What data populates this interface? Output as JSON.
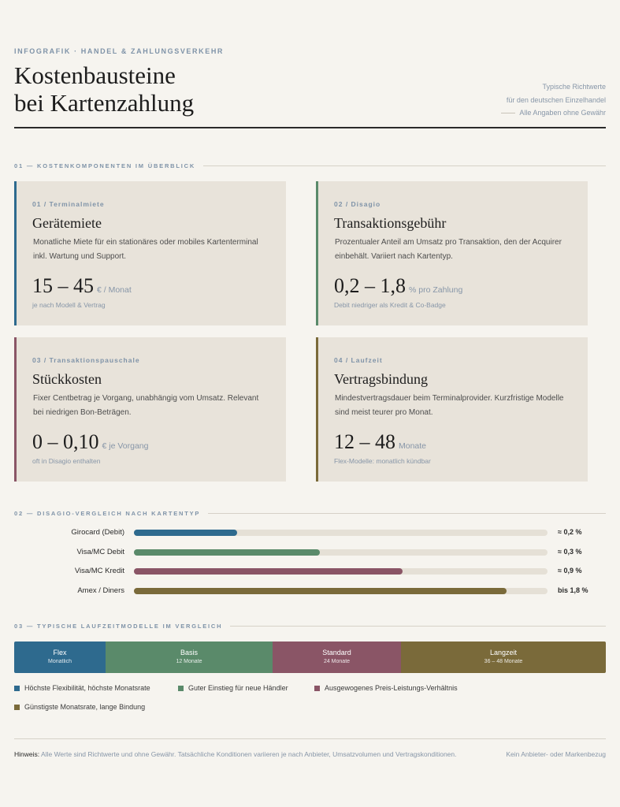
{
  "header": {
    "kicker": "INFOGRAFIK · HANDEL & ZAHLUNGSVERKEHR",
    "title": [
      "Kostenbausteine",
      "bei Kartenzahlung"
    ],
    "note": [
      "Typische Richtwerte",
      "für den deutschen Einzelhandel",
      "Alle Angaben ohne Gewähr"
    ]
  },
  "section1": {
    "label": "01 — KOSTENKOMPONENTEN IM ÜBERBLICK",
    "cards": [
      {
        "label": "01 / Terminalmiete",
        "title": "Gerätemiete",
        "text": "Monatliche Miete für ein stationäres oder mobiles Kartenterminal inkl. Wartung und Support.",
        "value": "15 – 45",
        "unit": "€ / Monat",
        "sub": "je nach Modell & Vertrag",
        "color": "#2e6a8e"
      },
      {
        "label": "02 / Disagio",
        "title": "Transaktionsgebühr",
        "text": "Prozentualer Anteil am Umsatz pro Transaktion, den der Acquirer einbehält. Variiert nach Kartentyp.",
        "value": "0,2 – 1,8",
        "unit": "% pro Zahlung",
        "sub": "Debit niedriger als Kredit & Co-Badge",
        "color": "#5a8a6a"
      },
      {
        "label": "03 / Transaktionspauschale",
        "title": "Stückkosten",
        "text": "Fixer Centbetrag je Vorgang, unabhängig vom Umsatz. Relevant bei niedrigen Bon-Beträgen.",
        "value": "0 – 0,10",
        "unit": "€ je Vorgang",
        "sub": "oft in Disagio enthalten",
        "color": "#8a5566"
      },
      {
        "label": "04 / Laufzeit",
        "title": "Vertragsbindung",
        "text": "Mindestvertragsdauer beim Terminalprovider. Kurzfristige Modelle sind meist teurer pro Monat.",
        "value": "12 – 48",
        "unit": "Monate",
        "sub": "Flex-Modelle: monatlich kündbar",
        "color": "#7a6a3a"
      }
    ]
  },
  "section2": {
    "label": "02 — DISAGIO-VERGLEICH NACH KARTENTYP",
    "rows": [
      {
        "name": "Girocard (Debit)",
        "fill": 25,
        "value_label": "≈ 0,2 %",
        "color": "#2e6a8e"
      },
      {
        "name": "Visa/MC Debit",
        "fill": 45,
        "value_label": "≈ 0,3 %",
        "color": "#5a8a6a"
      },
      {
        "name": "Visa/MC Kredit",
        "fill": 65,
        "value_label": "≈ 0,9 %",
        "color": "#8a5566"
      },
      {
        "name": "Amex / Diners",
        "fill": 90,
        "value_label": "bis 1,8 %",
        "color": "#7a6a3a"
      }
    ]
  },
  "section3": {
    "label": "03 — TYPISCHE LAUFZEITMODELLE IM VERGLEICH",
    "segments": [
      {
        "name": "Flex",
        "sub": "Monatlich",
        "legend": "Höchste Flexibilität, höchste Monatsrate",
        "color": "#2e6a8e"
      },
      {
        "name": "Basis",
        "sub": "12 Monate",
        "legend": "Guter Einstieg für neue Händler",
        "color": "#5a8a6a"
      },
      {
        "name": "Standard",
        "sub": "24 Monate",
        "legend": "Ausgewogenes Preis-Leistungs-Verhältnis",
        "color": "#8a5566"
      },
      {
        "name": "Langzeit",
        "sub": "36 – 48 Monate",
        "legend": "Günstigste Monatsrate, lange Bindung",
        "color": "#7a6a3a"
      }
    ]
  },
  "footer": {
    "label": "Hinweis:",
    "text": "Alle Werte sind Richtwerte und ohne Gewähr. Tatsächliche Konditionen variieren je nach Anbieter, Umsatzvolumen und Vertragskonditionen.",
    "right": "Kein Anbieter- oder Markenbezug"
  }
}
